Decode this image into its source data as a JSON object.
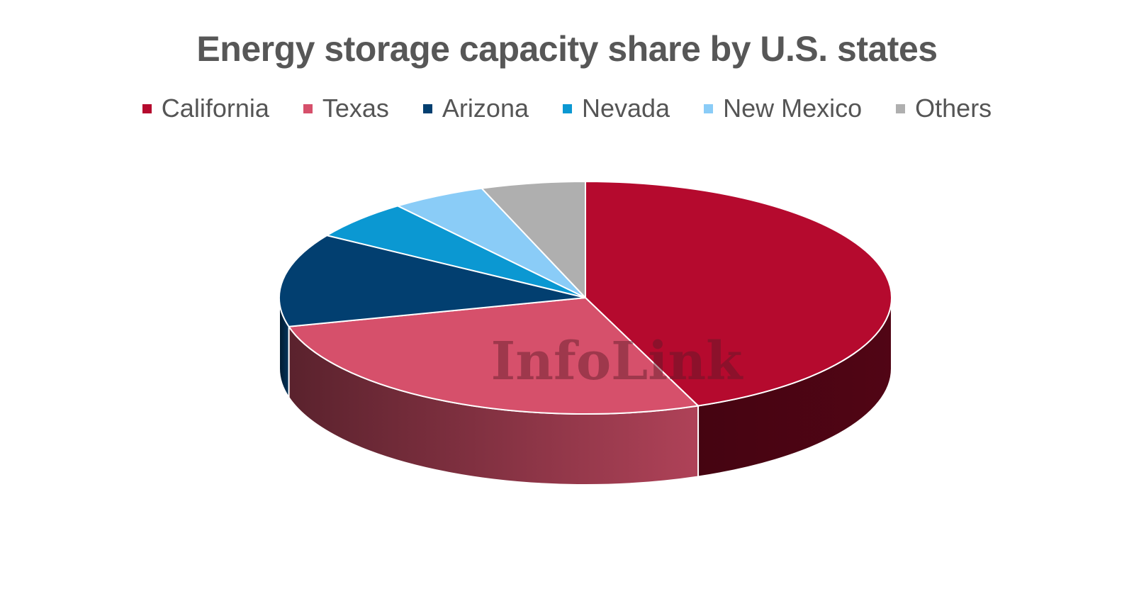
{
  "chart_data": {
    "type": "pie",
    "title": "Energy storage capacity share by U.S. states",
    "legend_position": "top",
    "slices": [
      {
        "label": "California",
        "value": 44,
        "color": "#b50a2e"
      },
      {
        "label": "Texas",
        "value": 27,
        "color": "#d6506b"
      },
      {
        "label": "Arizona",
        "value": 13,
        "color": "#023f70"
      },
      {
        "label": "Nevada",
        "value": 5.5,
        "color": "#0b98d2"
      },
      {
        "label": "New Mexico",
        "value": 5,
        "color": "#8accf7"
      },
      {
        "label": "Others",
        "value": 5.5,
        "color": "#afafaf"
      }
    ],
    "watermark": "InfoLink"
  }
}
